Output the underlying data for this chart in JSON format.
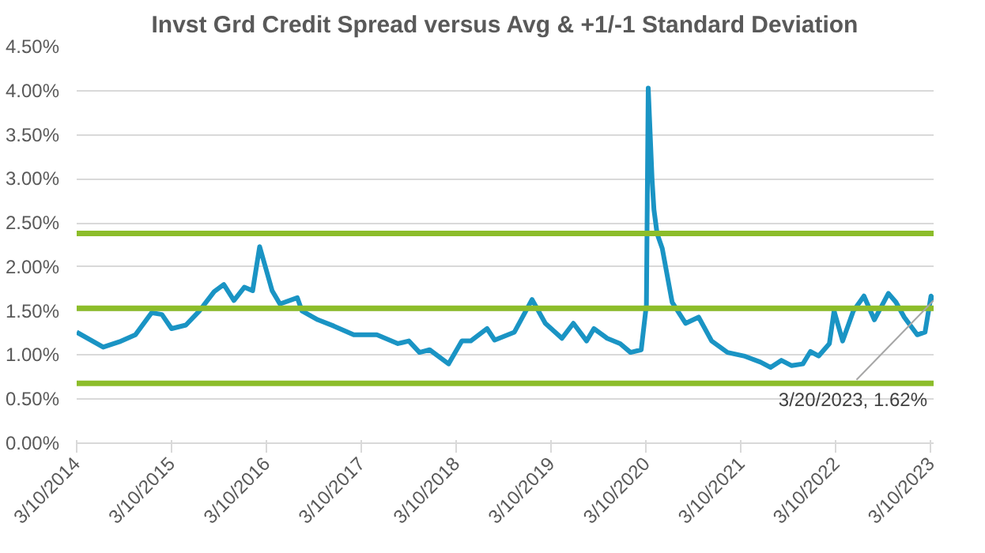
{
  "chart_data": {
    "type": "line",
    "title": "Invst Grd Credit Spread versus Avg & +1/-1 Standard Deviation",
    "x": [
      "2014-03-10",
      "2014-06-20",
      "2014-08-21",
      "2014-10-22",
      "2014-12-23",
      "2015-02-01",
      "2015-03-10",
      "2015-05-04",
      "2015-06-25",
      "2015-08-21",
      "2015-09-27",
      "2015-11-05",
      "2015-12-15",
      "2016-01-16",
      "2016-02-12",
      "2016-03-31",
      "2016-04-30",
      "2016-07-06",
      "2016-07-24",
      "2016-09-23",
      "2016-11-23",
      "2017-02-08",
      "2017-05-08",
      "2017-07-28",
      "2017-09-08",
      "2017-10-19",
      "2017-11-27",
      "2018-02-08",
      "2018-03-31",
      "2018-05-04",
      "2018-07-06",
      "2018-08-04",
      "2018-10-19",
      "2018-12-26",
      "2019-02-15",
      "2019-04-20",
      "2019-06-03",
      "2019-07-24",
      "2019-08-21",
      "2019-10-11",
      "2019-11-30",
      "2020-01-09",
      "2020-02-19",
      "2020-03-10",
      "2020-03-17",
      "2020-04-01",
      "2020-04-08",
      "2020-04-20",
      "2020-05-10",
      "2020-06-17",
      "2020-08-08",
      "2020-09-27",
      "2020-11-16",
      "2021-01-16",
      "2021-03-20",
      "2021-05-23",
      "2021-07-01",
      "2021-08-11",
      "2021-09-20",
      "2021-11-02",
      "2021-12-01",
      "2022-01-02",
      "2022-02-12",
      "2022-03-02",
      "2022-04-04",
      "2022-05-15",
      "2022-06-25",
      "2022-08-04",
      "2022-09-27",
      "2022-10-26",
      "2022-11-27",
      "2023-01-16",
      "2023-02-15",
      "2023-03-10",
      "2023-03-20"
    ],
    "series": [
      {
        "color": "#1a94c4",
        "values": [
          1.26,
          1.09,
          1.15,
          1.23,
          1.48,
          1.46,
          1.3,
          1.34,
          1.5,
          1.72,
          1.8,
          1.62,
          1.77,
          1.73,
          2.23,
          1.73,
          1.58,
          1.65,
          1.5,
          1.4,
          1.33,
          1.23,
          1.23,
          1.13,
          1.16,
          1.03,
          1.06,
          0.9,
          1.16,
          1.16,
          1.3,
          1.17,
          1.26,
          1.63,
          1.36,
          1.19,
          1.36,
          1.16,
          1.3,
          1.19,
          1.13,
          1.03,
          1.06,
          1.57,
          4.03,
          2.98,
          2.65,
          2.38,
          2.21,
          1.6,
          1.36,
          1.43,
          1.16,
          1.03,
          0.99,
          0.92,
          0.86,
          0.94,
          0.88,
          0.9,
          1.04,
          0.99,
          1.13,
          1.5,
          1.16,
          1.5,
          1.67,
          1.4,
          1.7,
          1.6,
          1.43,
          1.23,
          1.26,
          1.67,
          1.62
        ]
      }
    ],
    "xlim": [
      "2014-03-10",
      "2023-03-20"
    ],
    "xticks": [
      {
        "value": "2014-03-10",
        "label": "3/10/2014"
      },
      {
        "value": "2015-03-10",
        "label": "3/10/2015"
      },
      {
        "value": "2016-03-10",
        "label": "3/10/2016"
      },
      {
        "value": "2017-03-10",
        "label": "3/10/2017"
      },
      {
        "value": "2018-03-10",
        "label": "3/10/2018"
      },
      {
        "value": "2019-03-10",
        "label": "3/10/2019"
      },
      {
        "value": "2020-03-10",
        "label": "3/10/2020"
      },
      {
        "value": "2021-03-10",
        "label": "3/10/2021"
      },
      {
        "value": "2022-03-10",
        "label": "3/10/2022"
      },
      {
        "value": "2023-03-10",
        "label": "3/10/2023"
      }
    ],
    "ylim": [
      0,
      4.5
    ],
    "yticks": [
      {
        "value": 0,
        "label": "0.00%"
      },
      {
        "value": 0.5,
        "label": "0.50%"
      },
      {
        "value": 1,
        "label": "1.00%"
      },
      {
        "value": 1.5,
        "label": "1.50%"
      },
      {
        "value": 2,
        "label": "2.00%"
      },
      {
        "value": 2.5,
        "label": "2.50%"
      },
      {
        "value": 3,
        "label": "3.00%"
      },
      {
        "value": 3.5,
        "label": "3.50%"
      },
      {
        "value": 4,
        "label": "4.00%"
      },
      {
        "value": 4.5,
        "label": "4.50%"
      }
    ],
    "ref_lines": [
      {
        "axis": "y",
        "value": 2.38,
        "color": "#8cbd2a"
      },
      {
        "axis": "y",
        "value": 1.53,
        "color": "#8cbd2a"
      },
      {
        "axis": "y",
        "value": 0.68,
        "color": "#8cbd2a"
      }
    ],
    "annotations": [
      {
        "text": "3/20/2023, 1.62%",
        "x": "2023-03-20",
        "y": 1.62
      }
    ],
    "grid": "y",
    "marker": "none",
    "line_style": "solid"
  }
}
